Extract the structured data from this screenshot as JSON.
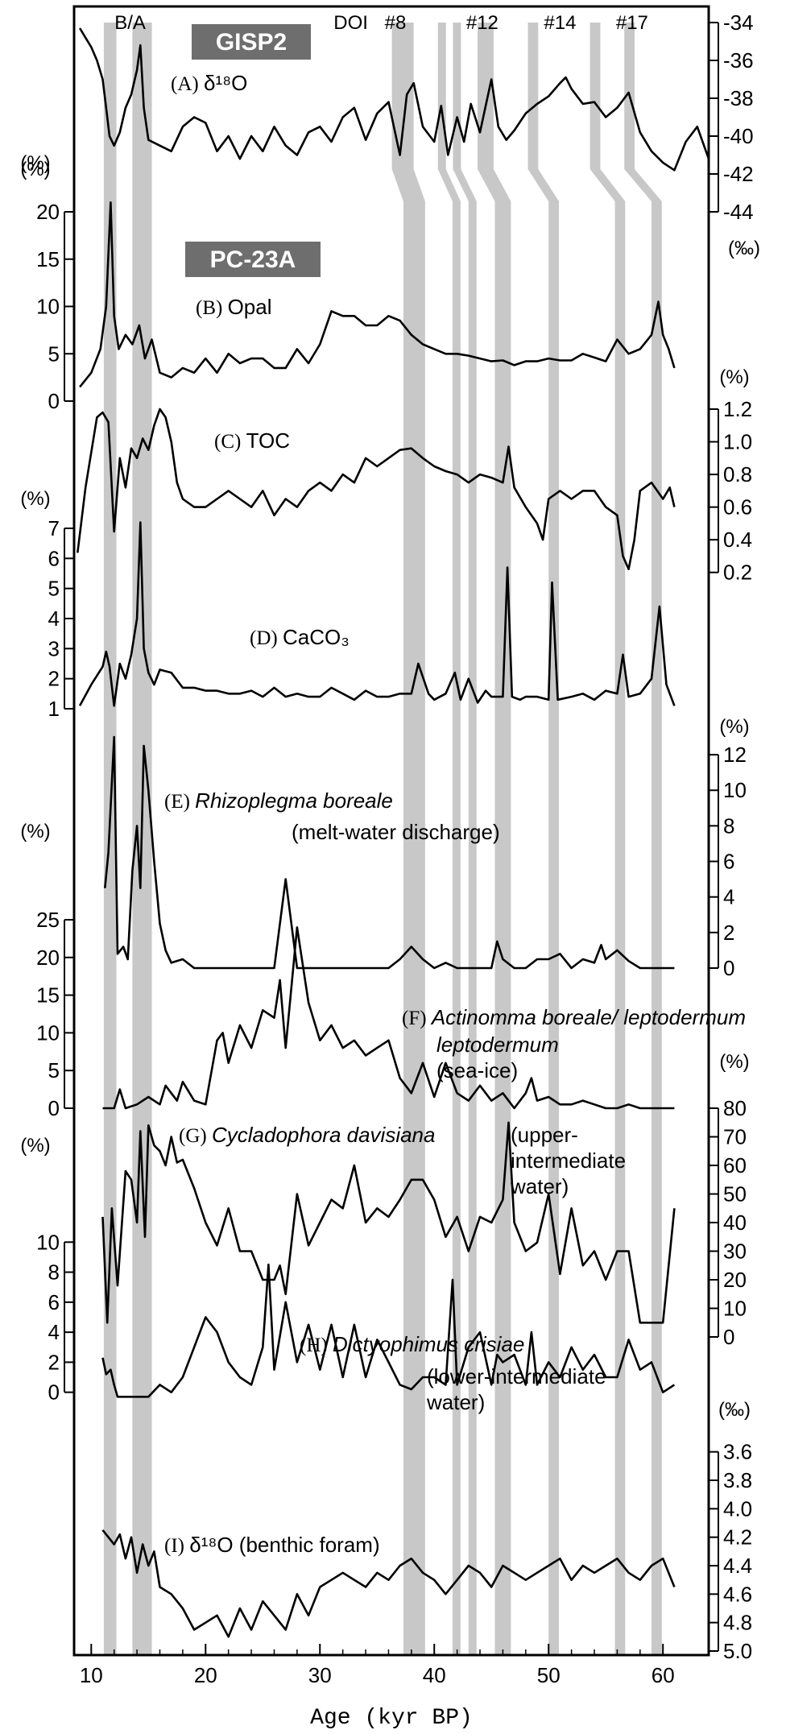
{
  "figure": {
    "x_axis_title": "Age (kyr BP)",
    "x_ticks": [
      10,
      20,
      30,
      40,
      50,
      60
    ],
    "xlim": [
      8.5,
      64
    ]
  },
  "band_labels": [
    {
      "text": "B/A",
      "at": 13.4
    },
    {
      "text": "DOI",
      "at": 32.7
    },
    {
      "text": "#8",
      "at": 36.6
    },
    {
      "text": "#12",
      "at": 44.2
    },
    {
      "text": "#14",
      "at": 51.0
    },
    {
      "text": "#17",
      "at": 57.3
    }
  ],
  "section_labels": {
    "gisp2": "GISP2",
    "pc23a": "PC-23A"
  },
  "unit_labels": {
    "pct": "(%)",
    "permil": "(‰)"
  },
  "chart_data": [
    {
      "id": "A",
      "type": "line",
      "panel_label": "(A)",
      "name": "δ¹⁸O",
      "axis_side": "right",
      "inverted": true,
      "unit": "‰",
      "ylim": [
        -34,
        -44
      ],
      "ticks": [
        -34,
        -36,
        -38,
        -40,
        -42,
        -44
      ],
      "x": [
        9,
        9.5,
        10,
        10.5,
        11,
        11.3,
        11.6,
        12,
        12.5,
        13,
        13.5,
        14,
        14.3,
        14.6,
        15,
        16,
        17,
        18,
        19,
        20,
        21,
        22,
        23,
        24,
        25,
        26,
        27,
        28,
        29,
        30,
        31,
        32,
        33,
        34,
        35,
        36,
        37,
        37.6,
        38.2,
        39,
        40,
        40.6,
        41.2,
        42,
        42.6,
        43.2,
        44,
        45,
        45.6,
        46.3,
        47,
        48,
        49,
        50,
        51,
        51.5,
        52,
        53,
        54,
        55,
        56,
        57,
        58,
        59,
        60,
        61,
        62,
        63,
        64
      ],
      "y": [
        -34.3,
        -34.8,
        -35.3,
        -36,
        -37,
        -38.5,
        -40,
        -40.5,
        -39.8,
        -38.5,
        -37.8,
        -36.5,
        -35.2,
        -38.5,
        -40.2,
        -40.5,
        -40.8,
        -39.5,
        -39,
        -39.3,
        -40.8,
        -40,
        -41.2,
        -40,
        -40.8,
        -39.5,
        -40.5,
        -41,
        -39.8,
        -39.5,
        -40.3,
        -39,
        -38.5,
        -40.2,
        -38.8,
        -38.2,
        -41,
        -37.8,
        -37.2,
        -39.5,
        -40.3,
        -38.4,
        -41,
        -39,
        -40.3,
        -38.3,
        -39.8,
        -37,
        -39.5,
        -40.2,
        -39.7,
        -38.8,
        -38.3,
        -37.9,
        -37.2,
        -36.9,
        -37.5,
        -38.3,
        -38.2,
        -39,
        -38.5,
        -37.7,
        -39.8,
        -40.8,
        -41.4,
        -41.8,
        -40.3,
        -39.5,
        -41.2
      ]
    },
    {
      "id": "B",
      "type": "line",
      "panel_label": "(B)",
      "name": "Opal",
      "axis_side": "left",
      "unit": "%",
      "ylim": [
        0,
        20
      ],
      "ticks": [
        0,
        5,
        10,
        15,
        20
      ],
      "x": [
        9,
        10,
        10.8,
        11.3,
        11.7,
        12,
        12.4,
        13,
        13.6,
        14.2,
        14.7,
        15.3,
        16,
        17,
        18,
        19,
        20,
        21,
        22,
        23,
        24,
        25,
        26,
        27,
        28,
        29,
        30,
        31,
        32,
        33,
        34,
        35,
        36,
        37,
        38,
        39,
        40,
        41,
        42,
        43,
        44,
        45,
        46,
        47,
        48,
        49,
        50,
        51,
        52,
        53,
        54,
        55,
        56,
        57,
        58,
        59,
        59.6,
        60,
        60.5,
        61
      ],
      "y": [
        1.5,
        3,
        5.5,
        10,
        21,
        9,
        5.5,
        7,
        6,
        8,
        4.5,
        6.5,
        3,
        2.5,
        3.5,
        3,
        4.5,
        3,
        5,
        4,
        4.5,
        4.5,
        3.5,
        3.5,
        5.5,
        4,
        6,
        9.5,
        9,
        9,
        8,
        8,
        9,
        8.5,
        7,
        6,
        5.5,
        5,
        5,
        4.8,
        4.5,
        4.2,
        4.3,
        3.8,
        4.2,
        4.2,
        4.5,
        4.3,
        4.3,
        5,
        4.6,
        4.2,
        6.5,
        5,
        5.5,
        7,
        10.5,
        7,
        5.5,
        3.5
      ]
    },
    {
      "id": "C",
      "type": "line",
      "panel_label": "(C)",
      "name": "TOC",
      "axis_side": "right",
      "unit": "%",
      "ylim": [
        0.1,
        1.2
      ],
      "ticks": [
        1.2,
        1.0,
        0.8,
        0.6,
        0.4,
        0.2
      ],
      "x": [
        8.8,
        9.5,
        10.5,
        11,
        11.5,
        12,
        12.5,
        13,
        13.5,
        14,
        14.5,
        15,
        15.5,
        16,
        16.5,
        17,
        17.5,
        18,
        19,
        20,
        21,
        22,
        23,
        24,
        25,
        26,
        27,
        28,
        29,
        30,
        31,
        32,
        33,
        34,
        35,
        36,
        37,
        38,
        39,
        40,
        41,
        42,
        43,
        44,
        45,
        46,
        46.5,
        47,
        48,
        49,
        49.5,
        50,
        51,
        52,
        53,
        54,
        55,
        56,
        56.5,
        57,
        57.5,
        58,
        59,
        60,
        60.6,
        61
      ],
      "y": [
        0.32,
        0.72,
        1.15,
        1.18,
        1.12,
        0.45,
        0.9,
        0.72,
        0.96,
        0.9,
        1.02,
        0.95,
        1.1,
        1.2,
        1.15,
        1.0,
        0.75,
        0.65,
        0.6,
        0.6,
        0.65,
        0.7,
        0.65,
        0.6,
        0.7,
        0.55,
        0.65,
        0.6,
        0.7,
        0.75,
        0.7,
        0.8,
        0.75,
        0.9,
        0.85,
        0.9,
        0.95,
        0.96,
        0.9,
        0.85,
        0.82,
        0.8,
        0.75,
        0.8,
        0.78,
        0.75,
        0.97,
        0.72,
        0.6,
        0.5,
        0.4,
        0.65,
        0.7,
        0.65,
        0.7,
        0.7,
        0.6,
        0.55,
        0.3,
        0.22,
        0.4,
        0.7,
        0.75,
        0.65,
        0.72,
        0.6
      ]
    },
    {
      "id": "D",
      "type": "line",
      "panel_label": "(D)",
      "name": "CaCO₃",
      "axis_side": "left",
      "unit": "%",
      "ylim": [
        1,
        7
      ],
      "ticks": [
        1,
        2,
        3,
        4,
        5,
        6,
        7
      ],
      "x": [
        9,
        10,
        11,
        11.3,
        11.6,
        12,
        12.5,
        13,
        13.5,
        14,
        14.3,
        14.6,
        15,
        15.5,
        16,
        17,
        18,
        19,
        20,
        21,
        22,
        23,
        24,
        25,
        26,
        27,
        28,
        29,
        30,
        31,
        32,
        33,
        34,
        35,
        36,
        37,
        38,
        38.6,
        39.5,
        40,
        41,
        41.8,
        42.3,
        43,
        43.8,
        44.5,
        45,
        46,
        46.4,
        46.8,
        47.5,
        48,
        49,
        50,
        50.3,
        50.8,
        52,
        53,
        54,
        55,
        56,
        56.5,
        57,
        58,
        59,
        59.7,
        60.3,
        61
      ],
      "y": [
        1.1,
        1.8,
        2.4,
        2.9,
        2.4,
        1.1,
        2.5,
        2,
        2.8,
        4,
        7.2,
        3,
        2.2,
        1.8,
        2.3,
        2.2,
        1.7,
        1.7,
        1.6,
        1.6,
        1.5,
        1.5,
        1.6,
        1.4,
        1.7,
        1.4,
        1.5,
        1.4,
        1.4,
        1.7,
        1.5,
        1.3,
        1.6,
        1.4,
        1.4,
        1.5,
        1.5,
        2.5,
        1.5,
        1.3,
        1.5,
        2.2,
        1.3,
        2,
        1.2,
        1.6,
        1.4,
        1.4,
        5.7,
        1.4,
        1.3,
        1.4,
        1.4,
        1.3,
        5.2,
        1.3,
        1.4,
        1.5,
        1.3,
        1.6,
        1.5,
        2.8,
        1.4,
        1.5,
        2,
        4.4,
        1.8,
        1.1
      ]
    },
    {
      "id": "E",
      "type": "line",
      "panel_label": "(E)",
      "name": "Rhizoplegma boreale",
      "note": "(melt-water discharge)",
      "axis_side": "right",
      "unit": "%",
      "ylim": [
        0,
        13
      ],
      "ticks": [
        0,
        2,
        4,
        6,
        8,
        10,
        12
      ],
      "x": [
        11.2,
        11.5,
        12,
        12.3,
        12.8,
        13.2,
        13.6,
        14,
        14.3,
        14.6,
        15,
        15.5,
        16,
        16.5,
        17,
        18,
        19,
        20,
        21,
        22,
        23,
        24,
        25,
        26,
        27,
        28,
        29,
        30,
        31,
        32,
        33,
        34,
        35,
        36,
        37,
        38,
        39,
        40,
        41,
        42,
        43,
        44,
        45,
        45.5,
        46,
        47,
        48,
        49,
        50,
        51,
        52,
        53,
        54,
        54.6,
        55,
        56,
        57,
        58,
        59,
        60,
        61
      ],
      "y": [
        4.5,
        6.5,
        13,
        0.8,
        1.2,
        0.5,
        5.5,
        8,
        4.5,
        12.5,
        10,
        6,
        2.5,
        1,
        0.3,
        0.5,
        0,
        0,
        0,
        0,
        0,
        0,
        0,
        0,
        5,
        0,
        0,
        0,
        0,
        0,
        0,
        0,
        0,
        0,
        0.5,
        1.2,
        0.5,
        0,
        0.3,
        0,
        0,
        0,
        0,
        1.5,
        0.5,
        0,
        0,
        0.5,
        0.5,
        0.8,
        0,
        0.5,
        0.3,
        1.3,
        0.5,
        1,
        0.4,
        0,
        0,
        0,
        0
      ]
    },
    {
      "id": "F",
      "type": "line",
      "panel_label": "(F)",
      "name": "Actinomma boreale/ leptodermum",
      "note": "(sea-ice)",
      "axis_side": "left",
      "unit": "%",
      "ylim": [
        0,
        25
      ],
      "ticks": [
        0,
        5,
        10,
        15,
        20,
        25
      ],
      "x": [
        11,
        12,
        12.5,
        13,
        14,
        15,
        16,
        16.5,
        17,
        17.5,
        18,
        19,
        20,
        21,
        21.5,
        22,
        23,
        24,
        25,
        26,
        26.5,
        27,
        28,
        29,
        30,
        31,
        32,
        33,
        34,
        35,
        36,
        37,
        38,
        39,
        40,
        41,
        42,
        43,
        44,
        45,
        46,
        47,
        47.5,
        48,
        48.5,
        49,
        50,
        51,
        52,
        53,
        54,
        55,
        56,
        57,
        58,
        59,
        60,
        61
      ],
      "y": [
        0,
        0,
        2.5,
        0,
        0.5,
        1.5,
        0.5,
        3,
        2,
        1,
        3.5,
        1,
        0.5,
        9,
        10,
        6,
        11,
        8,
        13,
        12,
        17,
        8,
        24,
        14,
        9,
        11,
        8,
        9,
        7,
        8,
        9,
        4,
        2,
        6,
        1.5,
        6,
        2,
        1,
        3,
        1,
        2,
        0,
        1,
        2,
        4,
        1,
        1.5,
        0.5,
        0.5,
        1,
        0.5,
        0,
        0,
        0.5,
        0,
        0,
        0,
        0
      ]
    },
    {
      "id": "G",
      "type": "line",
      "panel_label": "(G)",
      "name": "Cycladophora davisiana",
      "note": "(upper- intermediate water)",
      "axis_side": "right",
      "unit": "%",
      "ylim": [
        0,
        80
      ],
      "ticks": [
        0,
        10,
        20,
        30,
        40,
        50,
        60,
        70,
        80
      ],
      "x": [
        11,
        11.4,
        11.8,
        12.3,
        13,
        13.5,
        14,
        14.3,
        14.7,
        15,
        15.5,
        16,
        16.5,
        17,
        17.5,
        18,
        19,
        20,
        21,
        22,
        23,
        24,
        25,
        26,
        26.5,
        27,
        28,
        29,
        30,
        31,
        32,
        33,
        34,
        35,
        36,
        37,
        38,
        39,
        40,
        41,
        42,
        43,
        44,
        45,
        46,
        46.5,
        47,
        48,
        49,
        50,
        51,
        52,
        53,
        54,
        55,
        56,
        56.5,
        57,
        58,
        59,
        60,
        61
      ],
      "y": [
        42,
        5,
        45,
        18,
        58,
        55,
        40,
        72,
        35,
        74,
        67,
        65,
        60,
        70,
        61,
        62,
        52,
        40,
        32,
        45,
        30,
        30,
        20,
        20,
        25,
        15,
        50,
        32,
        40,
        48,
        45,
        60,
        40,
        45,
        42,
        48,
        55,
        55,
        48,
        35,
        42,
        30,
        42,
        40,
        48,
        75,
        40,
        30,
        33,
        50,
        22,
        45,
        25,
        30,
        20,
        30,
        30,
        30,
        5,
        5,
        5,
        45
      ]
    },
    {
      "id": "H",
      "type": "line",
      "panel_label": "(H)",
      "name": "Dictyophimus crisiae",
      "note": "(lower-intermediate water)",
      "axis_side": "left",
      "unit": "%",
      "ylim": [
        -0.5,
        12
      ],
      "ticks": [
        0,
        2,
        4,
        6,
        8,
        10
      ],
      "x": [
        11,
        11.3,
        11.7,
        12,
        12.3,
        13,
        14,
        15,
        16,
        17,
        18,
        19,
        20,
        21,
        22,
        23,
        24,
        25,
        25.5,
        26,
        27,
        28,
        29,
        30,
        31,
        32,
        33,
        34,
        35,
        36,
        37,
        38,
        39,
        40,
        41,
        41.6,
        42,
        43,
        44,
        45,
        45.5,
        46,
        47,
        48,
        48.5,
        49,
        50,
        51,
        52,
        53,
        54,
        55,
        56,
        57,
        58,
        59,
        60,
        61
      ],
      "y": [
        2.3,
        1.2,
        1.5,
        0.5,
        -0.3,
        -0.3,
        -0.3,
        -0.3,
        0.5,
        0,
        1,
        3,
        5,
        4,
        2,
        1,
        0.5,
        3,
        8.5,
        1.5,
        6,
        2,
        4.5,
        1.5,
        4.5,
        1,
        4.5,
        1,
        3.5,
        2,
        0.5,
        0.2,
        1,
        1,
        0.5,
        7.5,
        0.5,
        3,
        4,
        0.5,
        2.5,
        2,
        2.5,
        0.5,
        4,
        0.5,
        2,
        1,
        3,
        1.5,
        2.5,
        1,
        1,
        3.5,
        1.5,
        2,
        0,
        0.5
      ]
    },
    {
      "id": "I",
      "type": "line",
      "panel_label": "(I)",
      "name": "δ¹⁸O (benthic foram)",
      "axis_side": "right",
      "inverted": true,
      "unit": "‰",
      "ylim": [
        3.5,
        5.0
      ],
      "ticks": [
        3.6,
        3.8,
        4.0,
        4.2,
        4.4,
        4.6,
        4.8,
        5.0
      ],
      "x": [
        11,
        11.5,
        12,
        12.5,
        13,
        13.5,
        14,
        14.5,
        15,
        15.5,
        16,
        17,
        18,
        19,
        20,
        21,
        22,
        23,
        24,
        25,
        26,
        27,
        28,
        29,
        30,
        31,
        32,
        33,
        34,
        35,
        36,
        37,
        38,
        39,
        40,
        41,
        42,
        43,
        44,
        45,
        46,
        47,
        48,
        49,
        50,
        51,
        52,
        53,
        54,
        55,
        56,
        57,
        58,
        59,
        60,
        61
      ],
      "y": [
        4.15,
        4.2,
        4.25,
        4.18,
        4.35,
        4.2,
        4.45,
        4.25,
        4.4,
        4.3,
        4.55,
        4.6,
        4.7,
        4.85,
        4.8,
        4.75,
        4.9,
        4.7,
        4.85,
        4.65,
        4.75,
        4.85,
        4.6,
        4.75,
        4.55,
        4.5,
        4.45,
        4.5,
        4.55,
        4.45,
        4.5,
        4.4,
        4.35,
        4.45,
        4.5,
        4.6,
        4.5,
        4.4,
        4.45,
        4.55,
        4.4,
        4.45,
        4.5,
        4.45,
        4.4,
        4.35,
        4.5,
        4.4,
        4.45,
        4.4,
        4.35,
        4.45,
        4.5,
        4.4,
        4.35,
        4.55
      ]
    }
  ],
  "gray_bands": [
    {
      "name": "B/A-1",
      "from": 11.1,
      "to": 12.2
    },
    {
      "name": "B/A-2",
      "from": 13.6,
      "to": 15.3
    },
    {
      "name": "DOI-8",
      "from": 37.3,
      "to": 39.2
    },
    {
      "name": "DOI-9",
      "from": 41.6,
      "to": 42.3
    },
    {
      "name": "DOI-10",
      "from": 43.0,
      "to": 43.7
    },
    {
      "name": "DOI-12",
      "from": 45.3,
      "to": 46.7
    },
    {
      "name": "DOI-14",
      "from": 50.0,
      "to": 50.9
    },
    {
      "name": "DOI-17",
      "from": 55.8,
      "to": 56.7
    },
    {
      "name": "DOI-18",
      "from": 59.0,
      "to": 59.9
    }
  ],
  "colors": {
    "band": "#c8c8c8",
    "line": "#000000",
    "box": "#6e6e6e"
  }
}
